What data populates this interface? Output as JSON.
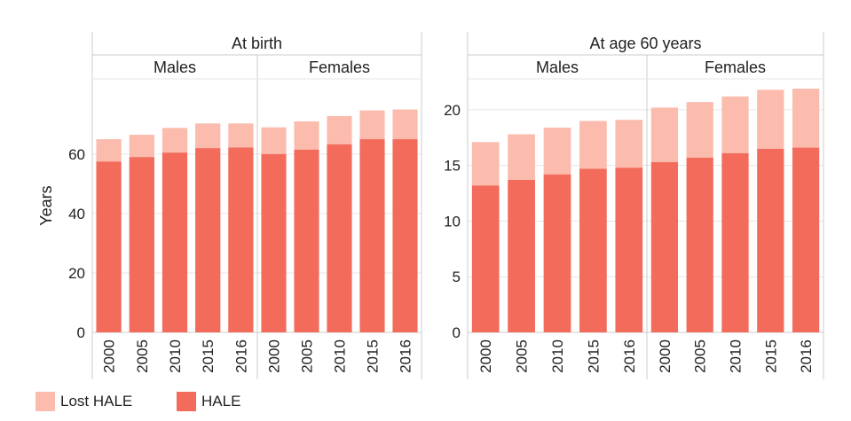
{
  "colors": {
    "hale": "#f26b5b",
    "lost": "#fbbcae",
    "grid": "#e6e6e6",
    "frame": "#cccccc",
    "text": "#222222"
  },
  "legend": [
    {
      "label": "Lost HALE",
      "color": "#fbbcae"
    },
    {
      "label": "HALE",
      "color": "#f26b5b"
    }
  ],
  "chart_data": [
    {
      "type": "bar",
      "stacked": true,
      "title": "At birth",
      "ylabel": "Years",
      "ylim": [
        0,
        85
      ],
      "yticks": [
        0,
        20,
        40,
        60
      ],
      "groups": [
        {
          "name": "Males",
          "categories": [
            "2000",
            "2005",
            "2010",
            "2015",
            "2016"
          ],
          "series": [
            {
              "name": "HALE",
              "values": [
                57.5,
                59,
                60.5,
                62,
                62.2
              ]
            },
            {
              "name": "Lost HALE",
              "values": [
                7.5,
                7.5,
                8.3,
                8.3,
                8.1
              ]
            }
          ]
        },
        {
          "name": "Females",
          "categories": [
            "2000",
            "2005",
            "2010",
            "2015",
            "2016"
          ],
          "series": [
            {
              "name": "HALE",
              "values": [
                60,
                61.5,
                63.3,
                65,
                65
              ]
            },
            {
              "name": "Lost HALE",
              "values": [
                9,
                9.5,
                9.5,
                9.7,
                10
              ]
            }
          ]
        }
      ]
    },
    {
      "type": "bar",
      "stacked": true,
      "title": "At age 60 years",
      "ylabel": "",
      "ylim": [
        0,
        22.7
      ],
      "yticks": [
        0,
        5,
        10,
        15,
        20
      ],
      "groups": [
        {
          "name": "Males",
          "categories": [
            "2000",
            "2005",
            "2010",
            "2015",
            "2016"
          ],
          "series": [
            {
              "name": "HALE",
              "values": [
                13.2,
                13.7,
                14.2,
                14.7,
                14.8
              ]
            },
            {
              "name": "Lost HALE",
              "values": [
                3.9,
                4.1,
                4.2,
                4.3,
                4.3
              ]
            }
          ]
        },
        {
          "name": "Females",
          "categories": [
            "2000",
            "2005",
            "2010",
            "2015",
            "2016"
          ],
          "series": [
            {
              "name": "HALE",
              "values": [
                15.3,
                15.7,
                16.1,
                16.5,
                16.6
              ]
            },
            {
              "name": "Lost HALE",
              "values": [
                4.9,
                5,
                5.1,
                5.3,
                5.3
              ]
            }
          ]
        }
      ]
    }
  ]
}
